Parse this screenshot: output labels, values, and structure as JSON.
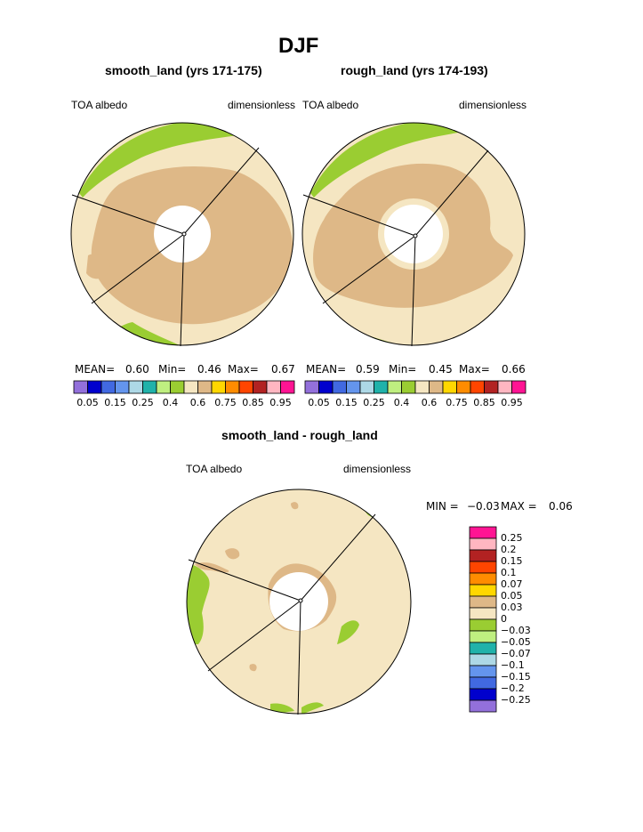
{
  "figure": {
    "title": "DJF",
    "colors": {
      "background": "#ffffff",
      "text": "#000000",
      "outline": "#000000",
      "hole": "#ffffff"
    }
  },
  "chart_data": [
    {
      "type": "heatmap",
      "projection": "polar",
      "title": "smooth_land (yrs 171-175)",
      "left_label": "TOA albedo",
      "right_label": "dimensionless",
      "stats": {
        "mean_label": "MEAN=",
        "mean": "0.60",
        "min_label": "Min=",
        "min": "0.46",
        "max_label": "Max=",
        "max": "0.67"
      },
      "colorbar": {
        "orientation": "horizontal",
        "colors": [
          "#9370db",
          "#0000cd",
          "#4169e1",
          "#6495ed",
          "#add8e6",
          "#20b2aa",
          "#bfef80",
          "#9acd32",
          "#f5e6c2",
          "#deb887",
          "#ffd700",
          "#ff8c00",
          "#ff4500",
          "#b22222",
          "#ffb6c1",
          "#ff1493"
        ],
        "labels": [
          "0.05",
          "0.15",
          "0.25",
          "0.4",
          "0.6",
          "0.75",
          "0.85",
          "0.95"
        ]
      },
      "regions": [
        {
          "name": "outer ring",
          "value_class": "0.5-0.6",
          "color": "#f5e6c2"
        },
        {
          "name": "interior",
          "value_class": "0.6-0.65",
          "color": "#deb887"
        },
        {
          "name": "coast",
          "value_class": "0.4-0.5",
          "color": "#9acd32"
        }
      ]
    },
    {
      "type": "heatmap",
      "projection": "polar",
      "title": "rough_land (yrs 174-193)",
      "left_label": "TOA albedo",
      "right_label": "dimensionless",
      "stats": {
        "mean_label": "MEAN=",
        "mean": "0.59",
        "min_label": "Min=",
        "min": "0.45",
        "max_label": "Max=",
        "max": "0.66"
      },
      "colorbar": {
        "orientation": "horizontal",
        "colors": [
          "#9370db",
          "#0000cd",
          "#4169e1",
          "#6495ed",
          "#add8e6",
          "#20b2aa",
          "#bfef80",
          "#9acd32",
          "#f5e6c2",
          "#deb887",
          "#ffd700",
          "#ff8c00",
          "#ff4500",
          "#b22222",
          "#ffb6c1",
          "#ff1493"
        ],
        "labels": [
          "0.05",
          "0.15",
          "0.25",
          "0.4",
          "0.6",
          "0.75",
          "0.85",
          "0.95"
        ]
      },
      "regions": [
        {
          "name": "outer ring",
          "value_class": "0.5-0.6",
          "color": "#f5e6c2"
        },
        {
          "name": "interior",
          "value_class": "0.6-0.65",
          "color": "#deb887"
        },
        {
          "name": "coast",
          "value_class": "0.4-0.5",
          "color": "#9acd32"
        }
      ]
    },
    {
      "type": "heatmap",
      "projection": "polar",
      "title": "smooth_land - rough_land",
      "left_label": "TOA albedo",
      "right_label": "dimensionless",
      "stats": {
        "min_label": "MIN =",
        "min": "−0.03",
        "max_label": "MAX =",
        "max": "0.06"
      },
      "colorbar": {
        "orientation": "vertical",
        "colors": [
          "#ff1493",
          "#ffb6c1",
          "#b22222",
          "#ff4500",
          "#ff8c00",
          "#ffd700",
          "#deb887",
          "#f5e6c2",
          "#9acd32",
          "#bfef80",
          "#20b2aa",
          "#add8e6",
          "#6495ed",
          "#4169e1",
          "#0000cd",
          "#9370db"
        ],
        "labels": [
          "0.25",
          "0.2",
          "0.15",
          "0.1",
          "0.07",
          "0.05",
          "0.03",
          "0",
          "−0.03",
          "−0.05",
          "−0.07",
          "−0.1",
          "−0.15",
          "−0.2",
          "−0.25"
        ]
      },
      "regions": [
        {
          "name": "background",
          "value_class": "0 to 0.03",
          "color": "#f5e6c2"
        },
        {
          "name": "patches",
          "value_class": "0.03 to 0.05",
          "color": "#deb887"
        },
        {
          "name": "negative",
          "value_class": "-0.03 to 0",
          "color": "#9acd32"
        }
      ]
    }
  ]
}
